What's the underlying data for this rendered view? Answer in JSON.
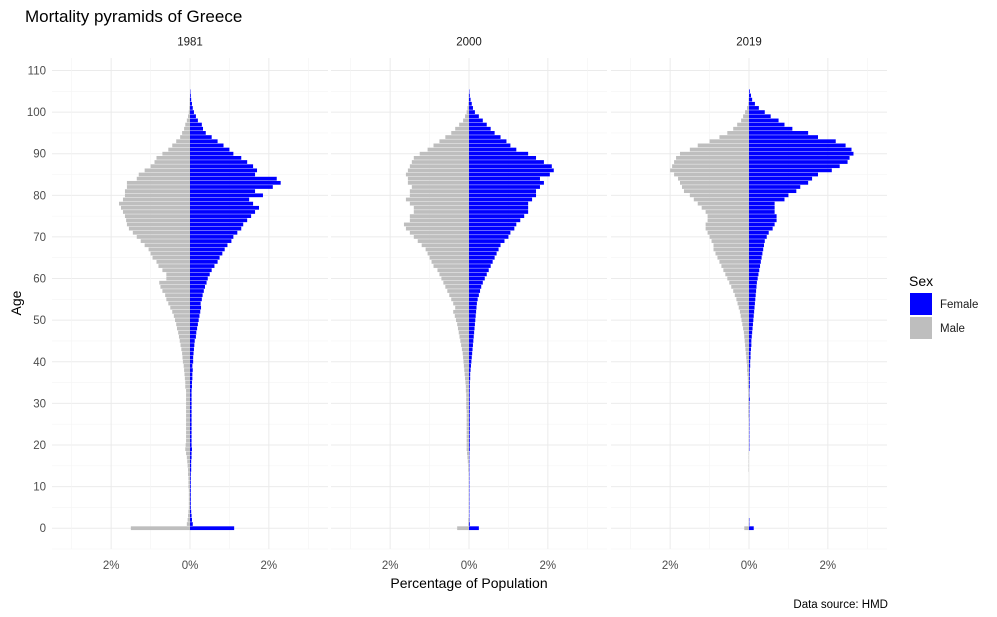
{
  "chart_data": {
    "type": "bar",
    "orientation": "horizontal",
    "title": "Mortality pyramids of Greece",
    "xlabel": "Percentage of Population",
    "ylabel": "Age",
    "caption": "Data source: HMD",
    "legend": {
      "title": "Sex",
      "position": "right",
      "entries": [
        {
          "name": "Female",
          "color": "#0000ff"
        },
        {
          "name": "Male",
          "color": "#bebebe"
        }
      ]
    },
    "xlim": [
      -3.5,
      3.5
    ],
    "ylim": [
      -5,
      113
    ],
    "x_ticks": [
      -2,
      0,
      2
    ],
    "x_tick_labels": [
      "2%",
      "0%",
      "2%"
    ],
    "y_ticks": [
      0,
      10,
      20,
      30,
      40,
      50,
      60,
      70,
      80,
      90,
      100,
      110
    ],
    "grid": true,
    "ages": [
      0,
      1,
      2,
      3,
      4,
      5,
      6,
      7,
      8,
      9,
      10,
      11,
      12,
      13,
      14,
      15,
      16,
      17,
      18,
      19,
      20,
      21,
      22,
      23,
      24,
      25,
      26,
      27,
      28,
      29,
      30,
      31,
      32,
      33,
      34,
      35,
      36,
      37,
      38,
      39,
      40,
      41,
      42,
      43,
      44,
      45,
      46,
      47,
      48,
      49,
      50,
      51,
      52,
      53,
      54,
      55,
      56,
      57,
      58,
      59,
      60,
      61,
      62,
      63,
      64,
      65,
      66,
      67,
      68,
      69,
      70,
      71,
      72,
      73,
      74,
      75,
      76,
      77,
      78,
      79,
      80,
      81,
      82,
      83,
      84,
      85,
      86,
      87,
      88,
      89,
      90,
      91,
      92,
      93,
      94,
      95,
      96,
      97,
      98,
      99,
      100,
      101,
      102,
      103,
      104,
      105
    ],
    "panels": [
      {
        "label": "1981",
        "series": [
          {
            "name": "Female",
            "values": [
              1.12,
              0.07,
              0.05,
              0.04,
              0.03,
              0.02,
              0.02,
              0.02,
              0.02,
              0.02,
              0.02,
              0.02,
              0.02,
              0.02,
              0.03,
              0.03,
              0.03,
              0.04,
              0.04,
              0.05,
              0.04,
              0.04,
              0.04,
              0.04,
              0.04,
              0.04,
              0.04,
              0.04,
              0.04,
              0.04,
              0.04,
              0.04,
              0.04,
              0.04,
              0.05,
              0.05,
              0.06,
              0.06,
              0.07,
              0.06,
              0.08,
              0.08,
              0.09,
              0.1,
              0.11,
              0.12,
              0.15,
              0.16,
              0.18,
              0.2,
              0.22,
              0.24,
              0.26,
              0.28,
              0.27,
              0.3,
              0.32,
              0.35,
              0.38,
              0.42,
              0.45,
              0.5,
              0.55,
              0.62,
              0.7,
              0.75,
              0.82,
              0.88,
              0.95,
              1.05,
              1.1,
              1.2,
              1.3,
              1.35,
              1.45,
              1.55,
              1.65,
              1.75,
              1.6,
              1.5,
              1.85,
              1.65,
              2.1,
              2.3,
              2.2,
              1.65,
              1.7,
              1.6,
              1.45,
              1.3,
              1.1,
              1.0,
              0.85,
              0.7,
              0.55,
              0.4,
              0.33,
              0.3,
              0.2,
              0.15,
              0.1,
              0.07,
              0.05,
              0.03,
              0.02,
              0.01
            ]
          },
          {
            "name": "Male",
            "values": [
              1.5,
              0.08,
              0.06,
              0.05,
              0.04,
              0.03,
              0.03,
              0.03,
              0.03,
              0.03,
              0.04,
              0.04,
              0.04,
              0.05,
              0.05,
              0.06,
              0.07,
              0.08,
              0.1,
              0.12,
              0.11,
              0.1,
              0.1,
              0.1,
              0.1,
              0.1,
              0.1,
              0.1,
              0.1,
              0.1,
              0.1,
              0.1,
              0.1,
              0.1,
              0.12,
              0.12,
              0.13,
              0.14,
              0.15,
              0.16,
              0.18,
              0.19,
              0.2,
              0.22,
              0.24,
              0.26,
              0.28,
              0.3,
              0.33,
              0.35,
              0.38,
              0.41,
              0.45,
              0.5,
              0.55,
              0.6,
              0.63,
              0.7,
              0.75,
              0.78,
              0.6,
              0.6,
              0.7,
              0.8,
              0.85,
              0.95,
              1.0,
              1.05,
              1.15,
              1.25,
              1.35,
              1.45,
              1.55,
              1.6,
              1.62,
              1.65,
              1.7,
              1.75,
              1.8,
              1.7,
              1.65,
              1.65,
              1.6,
              1.6,
              1.35,
              1.3,
              1.15,
              1.0,
              0.9,
              0.85,
              0.7,
              0.55,
              0.45,
              0.35,
              0.25,
              0.2,
              0.15,
              0.12,
              0.08,
              0.05,
              0.03,
              0.02,
              0.01,
              0.01,
              0.0,
              0.0
            ]
          }
        ]
      },
      {
        "label": "2000",
        "series": [
          {
            "name": "Female",
            "values": [
              0.25,
              0.02,
              0.01,
              0.01,
              0.01,
              0.01,
              0.01,
              0.01,
              0.01,
              0.01,
              0.01,
              0.01,
              0.01,
              0.01,
              0.01,
              0.01,
              0.01,
              0.01,
              0.01,
              0.02,
              0.02,
              0.02,
              0.02,
              0.02,
              0.02,
              0.02,
              0.02,
              0.02,
              0.02,
              0.02,
              0.02,
              0.02,
              0.02,
              0.02,
              0.02,
              0.02,
              0.03,
              0.03,
              0.04,
              0.05,
              0.06,
              0.07,
              0.08,
              0.09,
              0.1,
              0.11,
              0.12,
              0.13,
              0.14,
              0.15,
              0.16,
              0.17,
              0.18,
              0.19,
              0.2,
              0.22,
              0.25,
              0.28,
              0.31,
              0.35,
              0.4,
              0.45,
              0.5,
              0.55,
              0.6,
              0.65,
              0.7,
              0.75,
              0.8,
              0.9,
              1.0,
              1.05,
              1.15,
              1.2,
              1.3,
              1.4,
              1.5,
              1.5,
              1.5,
              1.6,
              1.7,
              1.7,
              1.8,
              1.9,
              1.8,
              2.05,
              2.15,
              2.1,
              1.9,
              1.7,
              1.5,
              1.2,
              1.05,
              0.95,
              0.8,
              0.65,
              0.55,
              0.45,
              0.35,
              0.25,
              0.15,
              0.1,
              0.07,
              0.04,
              0.02,
              0.01
            ]
          },
          {
            "name": "Male",
            "values": [
              0.3,
              0.02,
              0.02,
              0.01,
              0.01,
              0.01,
              0.01,
              0.01,
              0.01,
              0.01,
              0.01,
              0.01,
              0.01,
              0.01,
              0.02,
              0.02,
              0.03,
              0.04,
              0.05,
              0.06,
              0.06,
              0.06,
              0.06,
              0.06,
              0.06,
              0.06,
              0.06,
              0.06,
              0.06,
              0.07,
              0.07,
              0.07,
              0.07,
              0.08,
              0.08,
              0.09,
              0.1,
              0.11,
              0.12,
              0.13,
              0.14,
              0.15,
              0.16,
              0.18,
              0.2,
              0.22,
              0.24,
              0.26,
              0.28,
              0.3,
              0.33,
              0.36,
              0.4,
              0.35,
              0.4,
              0.45,
              0.5,
              0.55,
              0.6,
              0.65,
              0.7,
              0.75,
              0.8,
              0.9,
              0.95,
              1.0,
              1.05,
              1.1,
              1.2,
              1.3,
              1.4,
              1.5,
              1.6,
              1.65,
              1.5,
              1.5,
              1.4,
              1.4,
              1.5,
              1.6,
              1.5,
              1.5,
              1.45,
              1.55,
              1.55,
              1.6,
              1.55,
              1.5,
              1.45,
              1.4,
              1.25,
              1.05,
              0.9,
              0.75,
              0.6,
              0.45,
              0.35,
              0.25,
              0.15,
              0.1,
              0.06,
              0.04,
              0.02,
              0.01,
              0.01,
              0.0
            ]
          }
        ]
      },
      {
        "label": "2019",
        "series": [
          {
            "name": "Female",
            "values": [
              0.12,
              0.01,
              0.01,
              0.0,
              0.0,
              0.0,
              0.0,
              0.0,
              0.0,
              0.0,
              0.0,
              0.0,
              0.0,
              0.0,
              0.0,
              0.0,
              0.0,
              0.0,
              0.0,
              0.01,
              0.01,
              0.01,
              0.01,
              0.01,
              0.01,
              0.01,
              0.01,
              0.01,
              0.01,
              0.01,
              0.01,
              0.02,
              0.01,
              0.01,
              0.02,
              0.02,
              0.02,
              0.02,
              0.02,
              0.03,
              0.03,
              0.04,
              0.04,
              0.05,
              0.06,
              0.06,
              0.07,
              0.08,
              0.09,
              0.1,
              0.11,
              0.12,
              0.13,
              0.14,
              0.15,
              0.16,
              0.17,
              0.18,
              0.19,
              0.2,
              0.22,
              0.24,
              0.26,
              0.28,
              0.3,
              0.32,
              0.34,
              0.36,
              0.38,
              0.4,
              0.45,
              0.5,
              0.6,
              0.65,
              0.7,
              0.7,
              0.65,
              0.65,
              0.65,
              0.9,
              1.0,
              1.2,
              1.3,
              1.5,
              1.6,
              1.75,
              2.1,
              2.3,
              2.5,
              2.55,
              2.65,
              2.6,
              2.45,
              2.2,
              1.75,
              1.5,
              1.1,
              0.9,
              0.75,
              0.55,
              0.4,
              0.25,
              0.15,
              0.08,
              0.05,
              0.02
            ]
          },
          {
            "name": "Male",
            "values": [
              0.12,
              0.01,
              0.01,
              0.0,
              0.0,
              0.0,
              0.0,
              0.0,
              0.0,
              0.0,
              0.0,
              0.0,
              0.0,
              0.0,
              0.01,
              0.01,
              0.01,
              0.01,
              0.01,
              0.01,
              0.01,
              0.01,
              0.01,
              0.01,
              0.01,
              0.01,
              0.01,
              0.02,
              0.02,
              0.02,
              0.02,
              0.02,
              0.02,
              0.02,
              0.03,
              0.03,
              0.03,
              0.04,
              0.05,
              0.05,
              0.06,
              0.07,
              0.08,
              0.09,
              0.1,
              0.11,
              0.12,
              0.13,
              0.15,
              0.17,
              0.19,
              0.21,
              0.23,
              0.26,
              0.29,
              0.32,
              0.36,
              0.4,
              0.45,
              0.5,
              0.55,
              0.6,
              0.65,
              0.7,
              0.75,
              0.8,
              0.85,
              0.9,
              0.9,
              0.95,
              1.0,
              1.05,
              1.1,
              1.1,
              1.05,
              1.05,
              1.1,
              1.2,
              1.3,
              1.4,
              1.5,
              1.65,
              1.7,
              1.75,
              1.8,
              1.9,
              2.0,
              1.95,
              1.9,
              1.85,
              1.75,
              1.5,
              1.3,
              1.0,
              0.75,
              0.55,
              0.4,
              0.3,
              0.2,
              0.15,
              0.1,
              0.05,
              0.02,
              0.01,
              0.0,
              0.0
            ]
          }
        ]
      }
    ]
  }
}
